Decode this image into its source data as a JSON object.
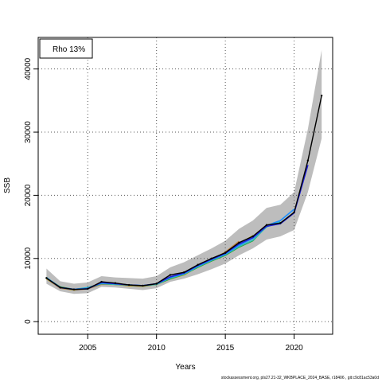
{
  "chart_data": {
    "type": "line",
    "xlabel": "Years",
    "ylabel": "SSB",
    "xlim": [
      2001.4,
      2022.8
    ],
    "ylim": [
      -2000,
      45000
    ],
    "xticks": [
      2005,
      2010,
      2015,
      2020
    ],
    "yticks": [
      0,
      10000,
      20000,
      30000,
      40000
    ],
    "grid": "dotted",
    "legend": {
      "placement": "top-left",
      "label": "Rho 13%"
    },
    "confidence_band": {
      "x": [
        2002,
        2003,
        2004,
        2005,
        2006,
        2007,
        2008,
        2009,
        2010,
        2011,
        2012,
        2013,
        2014,
        2015,
        2016,
        2017,
        2018,
        2019,
        2020,
        2021,
        2022
      ],
      "lower": [
        6000,
        4800,
        4400,
        4500,
        5500,
        5400,
        5200,
        5000,
        5300,
        6300,
        6800,
        7500,
        8300,
        9200,
        10500,
        11600,
        13000,
        13500,
        14500,
        20500,
        29000
      ],
      "upper": [
        8400,
        6400,
        6000,
        6200,
        7200,
        7000,
        6900,
        6800,
        7200,
        8600,
        9400,
        10500,
        11600,
        12800,
        14700,
        16000,
        18000,
        18500,
        20500,
        30500,
        43000
      ]
    },
    "series": [
      {
        "color": "#000000",
        "x": [
          2002,
          2003,
          2004,
          2005,
          2006,
          2007,
          2008,
          2009,
          2010,
          2011,
          2012,
          2013,
          2014,
          2015,
          2016,
          2017,
          2018,
          2019,
          2020,
          2021,
          2022
        ],
        "values": [
          6900,
          5400,
          5100,
          5200,
          6300,
          6100,
          5800,
          5700,
          6000,
          7400,
          7800,
          9000,
          10000,
          10900,
          12500,
          13500,
          15300,
          15600,
          17300,
          25500,
          35800
        ]
      },
      {
        "color": "#1f1fd6",
        "x": [
          2002,
          2003,
          2004,
          2005,
          2006,
          2007,
          2008,
          2009,
          2010,
          2011,
          2012,
          2013,
          2014,
          2015,
          2016,
          2017,
          2018,
          2019,
          2020,
          2021
        ],
        "values": [
          6900,
          5400,
          5100,
          5200,
          6200,
          6000,
          5800,
          5700,
          6000,
          7100,
          7700,
          8900,
          9900,
          10800,
          12300,
          13300,
          15100,
          15500,
          17200,
          24800
        ]
      },
      {
        "color": "#1e90ff",
        "x": [
          2002,
          2003,
          2004,
          2005,
          2006,
          2007,
          2008,
          2009,
          2010,
          2011,
          2012,
          2013,
          2014,
          2015,
          2016,
          2017,
          2018,
          2019,
          2020
        ],
        "values": [
          6900,
          5400,
          5100,
          5300,
          6100,
          6000,
          5800,
          5700,
          6000,
          7000,
          7600,
          8800,
          9800,
          10700,
          12100,
          13200,
          15200,
          16000,
          17800
        ]
      },
      {
        "color": "#2ebcb8",
        "x": [
          2002,
          2003,
          2004,
          2005,
          2006,
          2007,
          2008,
          2009,
          2010,
          2011,
          2012,
          2013,
          2014,
          2015,
          2016,
          2017,
          2018,
          2019
        ],
        "values": [
          7000,
          5400,
          5100,
          5400,
          6000,
          5900,
          5800,
          5700,
          5900,
          6900,
          7500,
          8700,
          9700,
          10600,
          11900,
          12900,
          15000,
          15800
        ]
      },
      {
        "color": "#2ca02c",
        "x": [
          2002,
          2003,
          2004,
          2005,
          2006,
          2007,
          2008,
          2009,
          2010,
          2011,
          2012,
          2013,
          2014,
          2015,
          2016,
          2017,
          2018
        ],
        "values": [
          6900,
          5500,
          5100,
          5300,
          6000,
          5900,
          5800,
          5700,
          5900,
          6800,
          7500,
          8600,
          9600,
          10500,
          11800,
          12800,
          15100
        ]
      },
      {
        "color": "#b8a000",
        "x": [
          2002,
          2003,
          2004,
          2005,
          2006,
          2007,
          2008,
          2009,
          2010,
          2011,
          2012,
          2013,
          2014,
          2015,
          2016,
          2017
        ],
        "values": [
          6800,
          5400,
          5000,
          5300,
          6000,
          5900,
          5700,
          5600,
          5900,
          6800,
          7400,
          8700,
          9700,
          10800,
          12300,
          13600
        ]
      },
      {
        "color": "#c08040",
        "x": [
          2002,
          2003,
          2004,
          2005,
          2006,
          2007,
          2008,
          2009,
          2010,
          2011,
          2012,
          2013,
          2014,
          2015,
          2016
        ],
        "values": [
          6800,
          5300,
          5000,
          5200,
          5900,
          5900,
          5700,
          5600,
          5900,
          6800,
          7500,
          8800,
          9800,
          11000,
          12700
        ]
      }
    ]
  },
  "footer": "stockassessment.org, pls27.21-32_WKBPLACE_2024_BASE, r18406 , git:c9c81ac53a0d"
}
